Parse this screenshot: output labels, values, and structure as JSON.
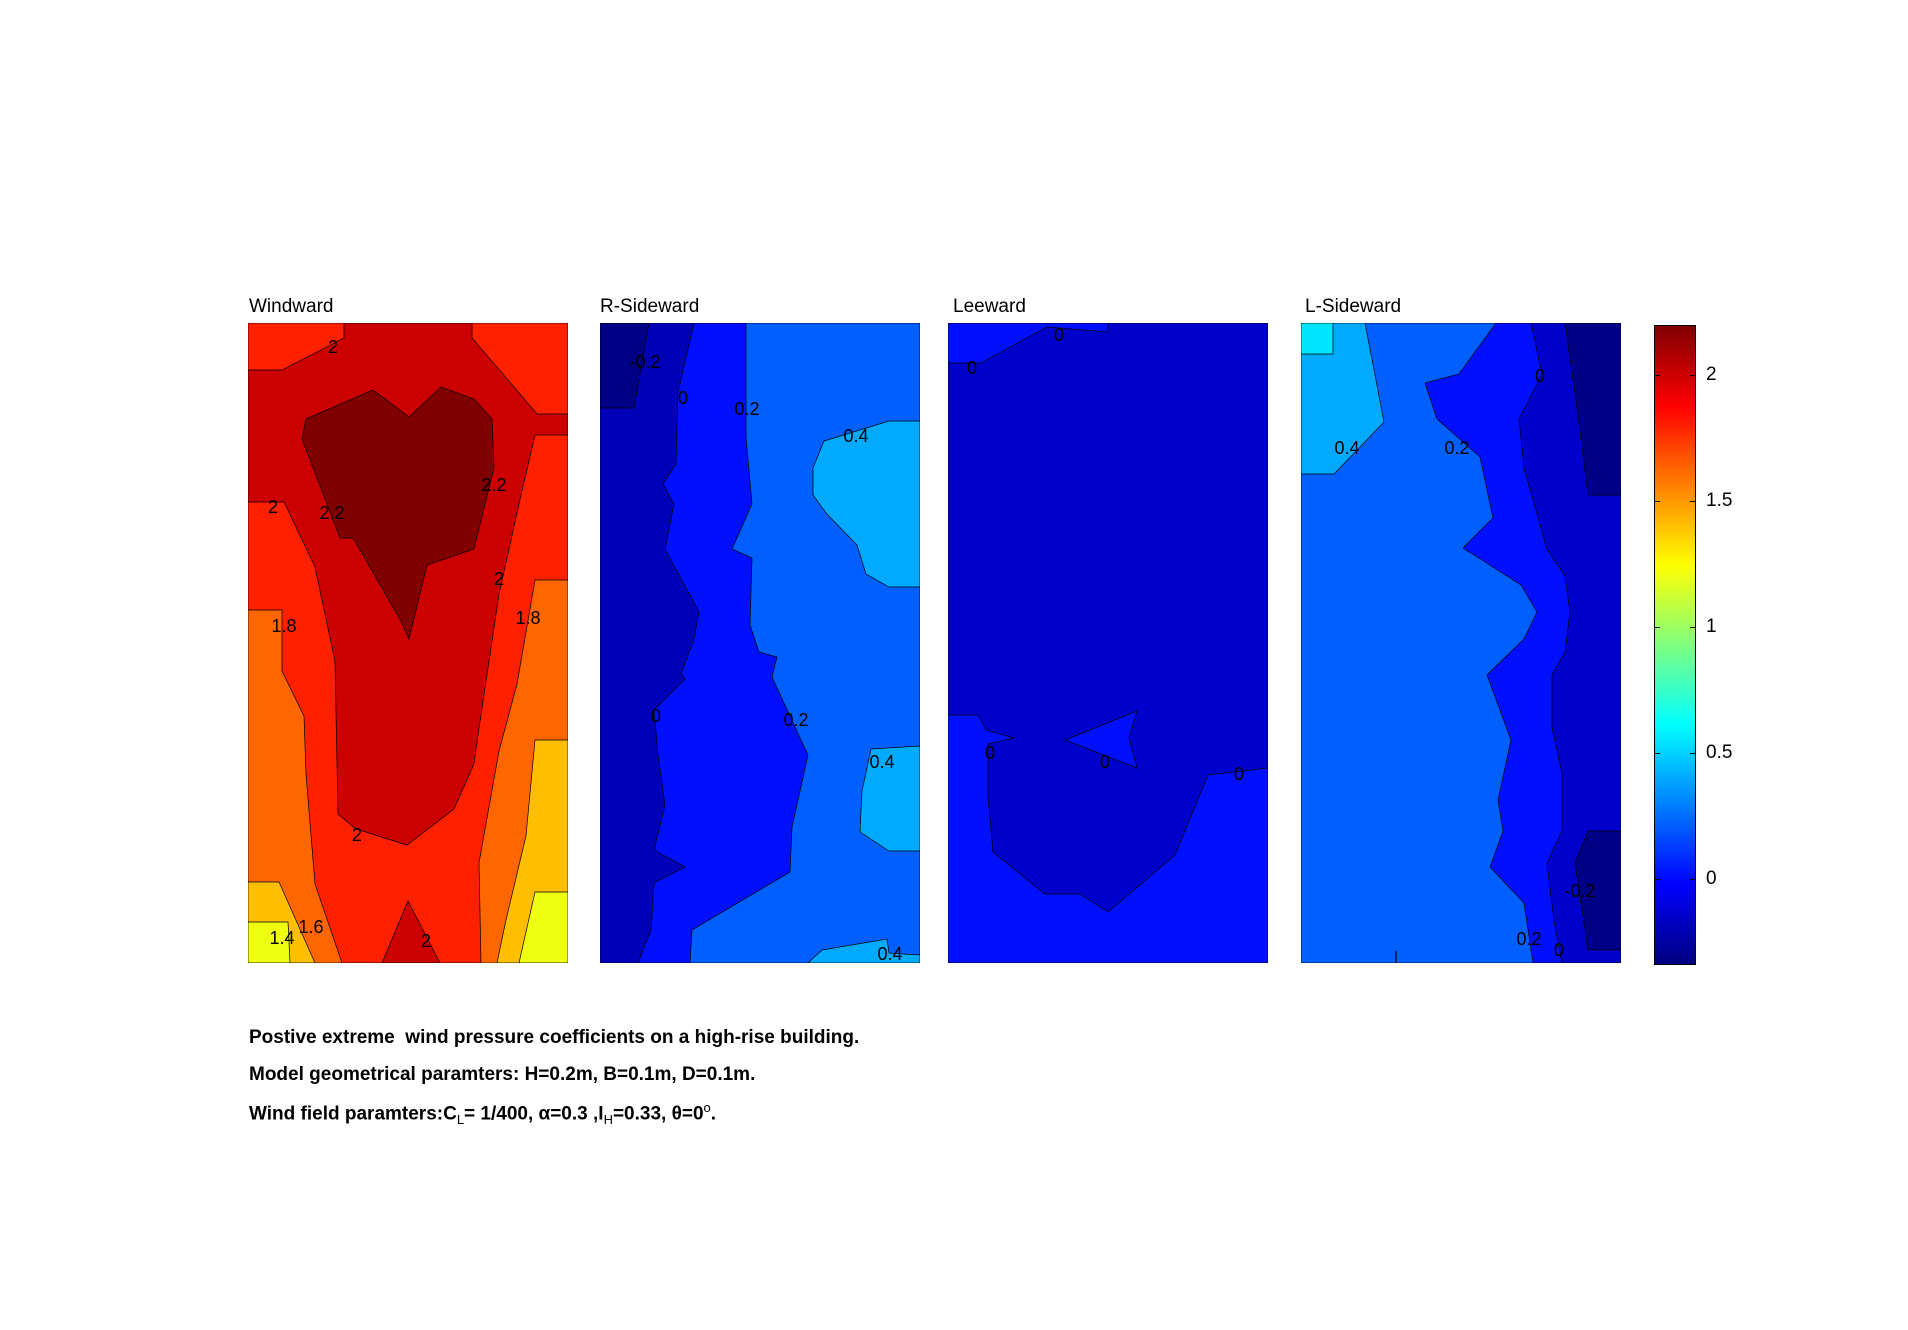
{
  "chart_data": {
    "type": "heatmap",
    "subtype": "filled-contour",
    "panels": [
      {
        "title": "Windward",
        "contour_labels": [
          "2",
          "2",
          "2.2",
          "2.2",
          "2",
          "1.8",
          "1.8",
          "2",
          "1.4",
          "1.6",
          "2"
        ]
      },
      {
        "title": "R-Sideward",
        "contour_labels": [
          "-0.2",
          "0",
          "0.2",
          "0.4",
          "0",
          "0.2",
          "0.4",
          "0.4"
        ]
      },
      {
        "title": "Leeward",
        "contour_labels": [
          "0",
          "0",
          "0",
          "0",
          "0"
        ]
      },
      {
        "title": "L-Sideward",
        "contour_labels": [
          "0.4",
          "0.2",
          "0",
          "-0.2",
          "0.2",
          "0"
        ]
      }
    ],
    "contour_levels": [
      -0.2,
      0,
      0.2,
      0.4,
      0.6,
      1.2,
      1.4,
      1.6,
      1.8,
      2.0,
      2.2
    ],
    "colorbar": {
      "colormap": "jet",
      "range": [
        -0.34,
        2.2
      ],
      "ticks": [
        0,
        0.5,
        1,
        1.5,
        2
      ],
      "tick_labels": [
        "0",
        "0.5",
        "1",
        "1.5",
        "2"
      ]
    }
  },
  "caption": {
    "line1": "Postive extreme  wind pressure coefficients on a high-rise building.",
    "line2": "Model geometrical paramters: H=0.2m, B=0.1m, D=0.1m.",
    "line3": {
      "a": "Wind field paramters:C",
      "sub1": "L",
      "b": "= 1/400, α=0.3 ,I",
      "sub2": "H",
      "c": "=0.33, θ=0",
      "sup": "o",
      "d": "."
    }
  }
}
